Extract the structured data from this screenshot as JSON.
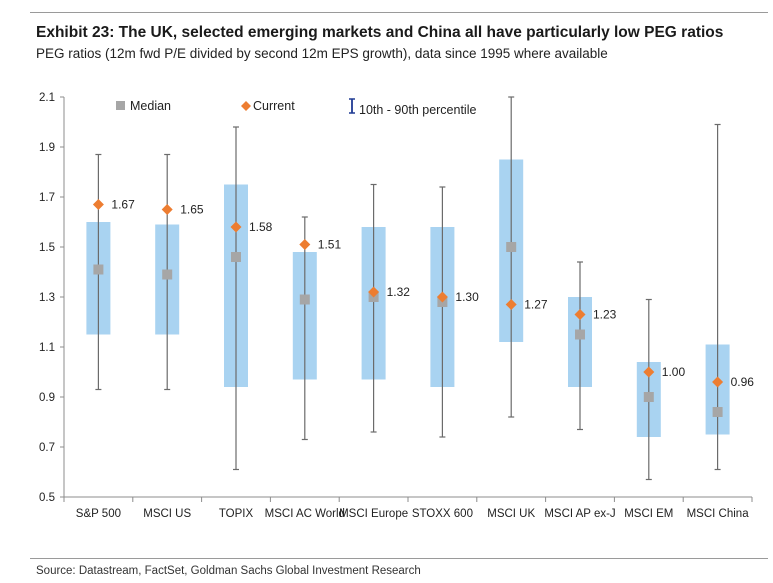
{
  "header": {
    "title": "Exhibit 23: The UK, selected emerging markets and China all have particularly low PEG ratios",
    "subtitle": "PEG ratios (12m fwd P/E divided by second 12m EPS growth), data since 1995 where available"
  },
  "footer": {
    "source": "Source: Datastream, FactSet, Goldman Sachs Global Investment Research"
  },
  "colors": {
    "box": "#a9d3f1",
    "whisker": "#6b6b6b",
    "median": "#a6a6a6",
    "current": "#ed7d31",
    "legend_ibar": "#1f3a93"
  },
  "chart_data": {
    "type": "box-range",
    "title": "Exhibit 23: The UK, selected emerging markets and China all have particularly low PEG ratios",
    "xlabel": "",
    "ylabel": "",
    "ylim": [
      0.5,
      2.1
    ],
    "yticks": [
      0.5,
      0.7,
      0.9,
      1.1,
      1.3,
      1.5,
      1.7,
      1.9,
      2.1
    ],
    "ytick_labels": [
      "0.5",
      "0.7",
      "0.9",
      "1.1",
      "1.3",
      "1.5",
      "1.7",
      "1.9",
      "2.1"
    ],
    "legend": {
      "median": "Median",
      "current": "Current",
      "range": "10th - 90th percentile",
      "position": "top-left"
    },
    "categories": [
      "S&P 500",
      "MSCI US",
      "TOPIX",
      "MSCI AC World",
      "MSCI Europe",
      "STOXX 600",
      "MSCI UK",
      "MSCI AP ex-J",
      "MSCI EM",
      "MSCI China"
    ],
    "p10": [
      1.15,
      1.15,
      0.94,
      0.97,
      0.97,
      0.94,
      1.12,
      0.94,
      0.74,
      0.75
    ],
    "p90": [
      1.6,
      1.59,
      1.75,
      1.48,
      1.58,
      1.58,
      1.85,
      1.3,
      1.04,
      1.11
    ],
    "min": [
      0.93,
      0.93,
      0.61,
      0.73,
      0.76,
      0.74,
      0.82,
      0.77,
      0.57,
      0.61
    ],
    "max": [
      1.87,
      1.87,
      1.98,
      1.62,
      1.75,
      1.74,
      2.1,
      1.44,
      1.29,
      1.99
    ],
    "median": [
      1.41,
      1.39,
      1.46,
      1.29,
      1.3,
      1.28,
      1.5,
      1.15,
      0.9,
      0.84
    ],
    "current": [
      1.67,
      1.65,
      1.58,
      1.51,
      1.32,
      1.3,
      1.27,
      1.23,
      1.0,
      0.96
    ],
    "current_labels": [
      "1.67",
      "1.65",
      "1.58",
      "1.51",
      "1.32",
      "1.30",
      "1.27",
      "1.23",
      "1.00",
      "0.96"
    ]
  }
}
